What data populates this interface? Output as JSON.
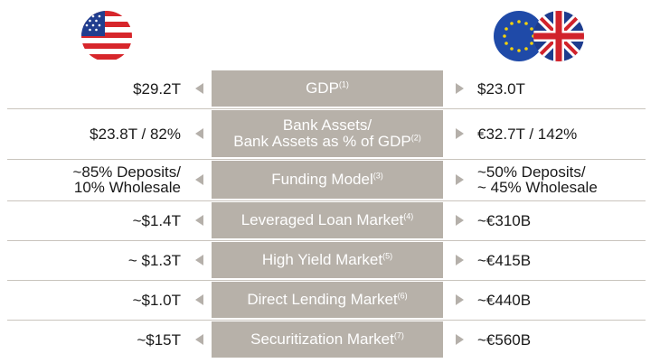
{
  "colors": {
    "label_bg": "#b7b1a9",
    "arrow": "#b5b0aa",
    "divider": "#c9c4bd"
  },
  "flags": {
    "left": "us-flag-icon",
    "right": [
      "eu-flag-icon",
      "uk-flag-icon"
    ]
  },
  "rows": [
    {
      "left": [
        "$29.2T"
      ],
      "label": [
        "GDP"
      ],
      "note": "(1)",
      "right": [
        "$23.0T"
      ]
    },
    {
      "left": [
        "$23.8T / 82%"
      ],
      "label": [
        "Bank Assets/",
        "Bank Assets as % of GDP"
      ],
      "note": "(2)",
      "right": [
        "€32.7T / 142%"
      ]
    },
    {
      "left": [
        "~85% Deposits/",
        "10% Wholesale"
      ],
      "label": [
        "Funding Model"
      ],
      "note": "(3)",
      "right": [
        "~50% Deposits/",
        "~ 45% Wholesale"
      ]
    },
    {
      "left": [
        "~$1.4T"
      ],
      "label": [
        "Leveraged Loan Market"
      ],
      "note": "(4)",
      "right": [
        "~€310B"
      ]
    },
    {
      "left": [
        "~ $1.3T"
      ],
      "label": [
        "High Yield Market"
      ],
      "note": "(5)",
      "right": [
        "~€415B"
      ]
    },
    {
      "left": [
        "~$1.0T"
      ],
      "label": [
        "Direct Lending Market"
      ],
      "note": "(6)",
      "right": [
        "~€440B"
      ]
    },
    {
      "left": [
        "~$15T"
      ],
      "label": [
        "Securitization Market"
      ],
      "note": "(7)",
      "right": [
        "~€560B"
      ]
    }
  ]
}
